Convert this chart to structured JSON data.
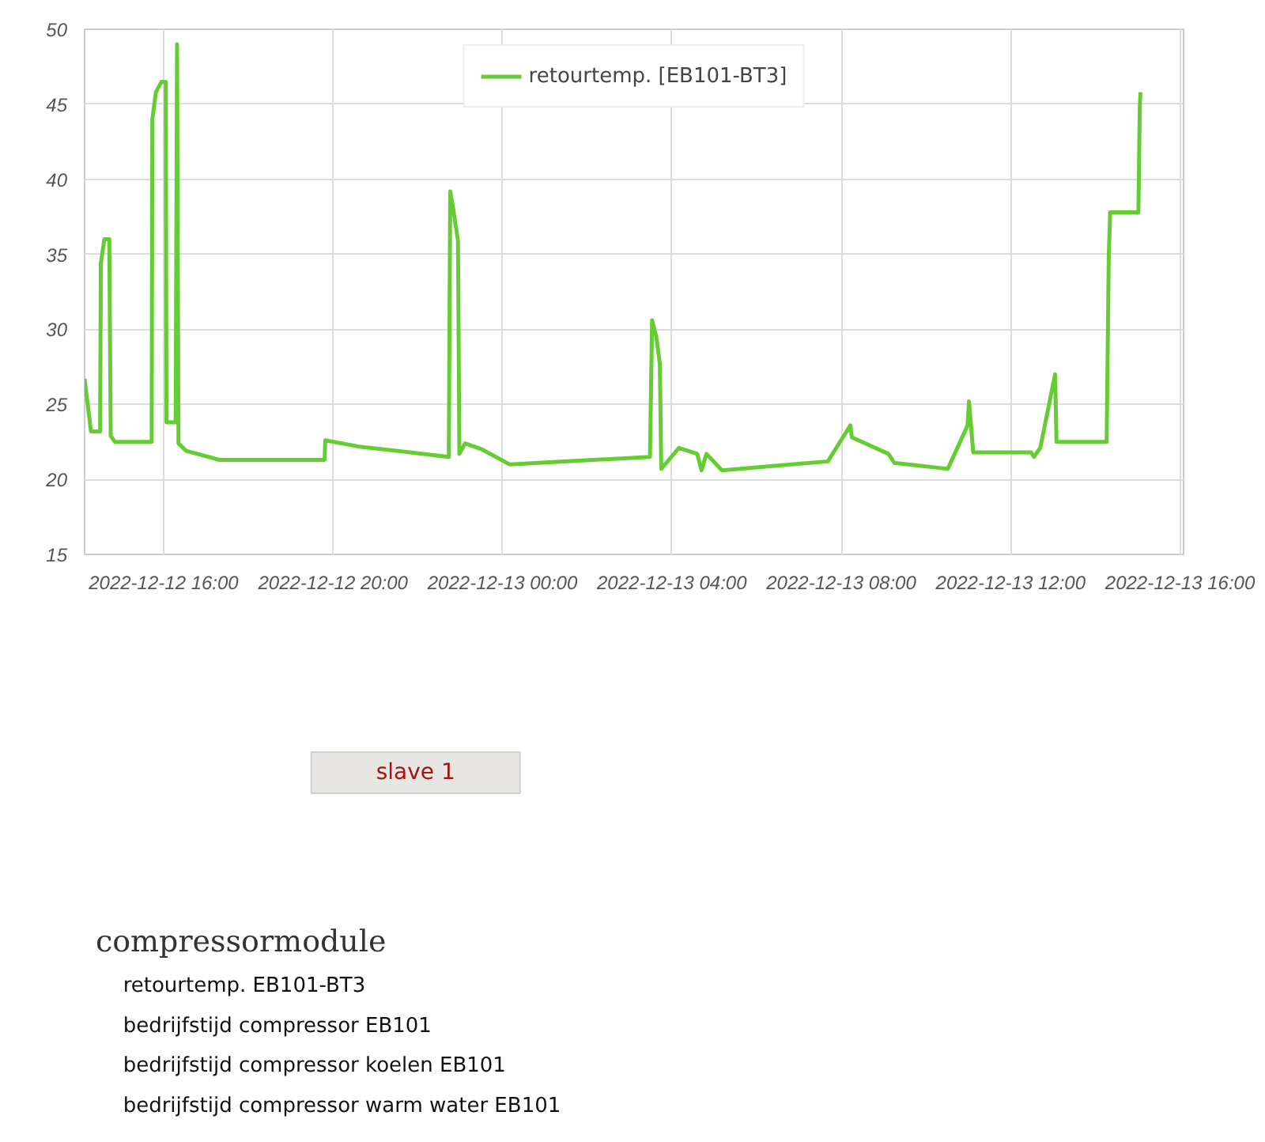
{
  "chart_data": [
    {
      "type": "line",
      "legend": "top",
      "grid": true,
      "marker": "none",
      "line_style": "solid",
      "xlim": [
        "2022-12-12T14:08",
        "2022-12-13T16:05"
      ],
      "ylim": [
        15,
        50
      ],
      "yticks": [
        15,
        20,
        25,
        30,
        35,
        40,
        45,
        50
      ],
      "xticks": [
        {
          "value": "2022-12-12T16:00",
          "label": "2022-12-12 16:00"
        },
        {
          "value": "2022-12-12T20:00",
          "label": "2022-12-12 20:00"
        },
        {
          "value": "2022-12-13T00:00",
          "label": "2022-12-13 00:00"
        },
        {
          "value": "2022-12-13T04:00",
          "label": "2022-12-13 04:00"
        },
        {
          "value": "2022-12-13T08:00",
          "label": "2022-12-13 08:00"
        },
        {
          "value": "2022-12-13T12:00",
          "label": "2022-12-13 12:00"
        },
        {
          "value": "2022-12-13T16:00",
          "label": "2022-12-13 16:00"
        }
      ],
      "x": [
        "2022-12-12T14:08",
        "2022-12-12T14:17",
        "2022-12-12T14:30",
        "2022-12-12T14:31",
        "2022-12-12T14:36",
        "2022-12-12T14:43",
        "2022-12-12T14:45",
        "2022-12-12T14:51",
        "2022-12-12T15:43",
        "2022-12-12T15:44",
        "2022-12-12T15:49",
        "2022-12-12T15:57",
        "2022-12-12T16:03",
        "2022-12-12T16:04",
        "2022-12-12T16:17",
        "2022-12-12T16:19",
        "2022-12-12T16:21",
        "2022-12-12T16:32",
        "2022-12-12T17:19",
        "2022-12-12T19:48",
        "2022-12-12T19:49",
        "2022-12-12T20:35",
        "2022-12-12T22:44",
        "2022-12-12T22:46",
        "2022-12-12T22:50",
        "2022-12-12T22:57",
        "2022-12-12T22:59",
        "2022-12-12T23:07",
        "2022-12-12T23:31",
        "2022-12-13T00:10",
        "2022-12-13T03:29",
        "2022-12-13T03:32",
        "2022-12-13T03:38",
        "2022-12-13T03:43",
        "2022-12-13T03:45",
        "2022-12-13T04:10",
        "2022-12-13T04:36",
        "2022-12-13T04:42",
        "2022-12-13T04:49",
        "2022-12-13T05:11",
        "2022-12-13T07:41",
        "2022-12-13T08:13",
        "2022-12-13T08:15",
        "2022-12-13T09:07",
        "2022-12-13T09:15",
        "2022-12-13T10:31",
        "2022-12-13T10:59",
        "2022-12-13T11:01",
        "2022-12-13T11:07",
        "2022-12-13T12:29",
        "2022-12-13T12:33",
        "2022-12-13T12:42",
        "2022-12-13T13:03",
        "2022-12-13T13:05",
        "2022-12-13T14:16",
        "2022-12-13T14:19",
        "2022-12-13T14:21",
        "2022-12-13T15:01",
        "2022-12-13T15:03",
        "2022-12-13T15:04"
      ],
      "series": [
        {
          "name": "retourtemp. [EB101-BT3]",
          "color": "#66cc33",
          "values": [
            26.7,
            23.2,
            23.2,
            34.4,
            36,
            36,
            22.9,
            22.5,
            22.5,
            44,
            45.8,
            46.5,
            46.5,
            23.8,
            23.8,
            49,
            22.4,
            21.9,
            21.3,
            21.3,
            22.6,
            22.2,
            21.5,
            39.2,
            38.1,
            35.9,
            21.7,
            22.4,
            22.0,
            21.0,
            21.5,
            30.6,
            29.5,
            27.7,
            20.7,
            22.1,
            21.7,
            20.6,
            21.7,
            20.6,
            21.2,
            23.6,
            22.8,
            21.7,
            21.1,
            20.7,
            23.6,
            25.2,
            21.8,
            21.8,
            21.5,
            22.1,
            27.0,
            22.5,
            22.5,
            34.8,
            37.8,
            37.8,
            44.9,
            45.8
          ]
        }
      ]
    },
    {
      "type": "other",
      "annotations": [
        "slave 1",
        "compressormodule",
        "retourtemp. EB101-BT3",
        "bedrijfstijd compressor EB101",
        "bedrijfstijd compressor koelen EB101",
        "bedrijfstijd compressor warm water EB101"
      ]
    }
  ]
}
